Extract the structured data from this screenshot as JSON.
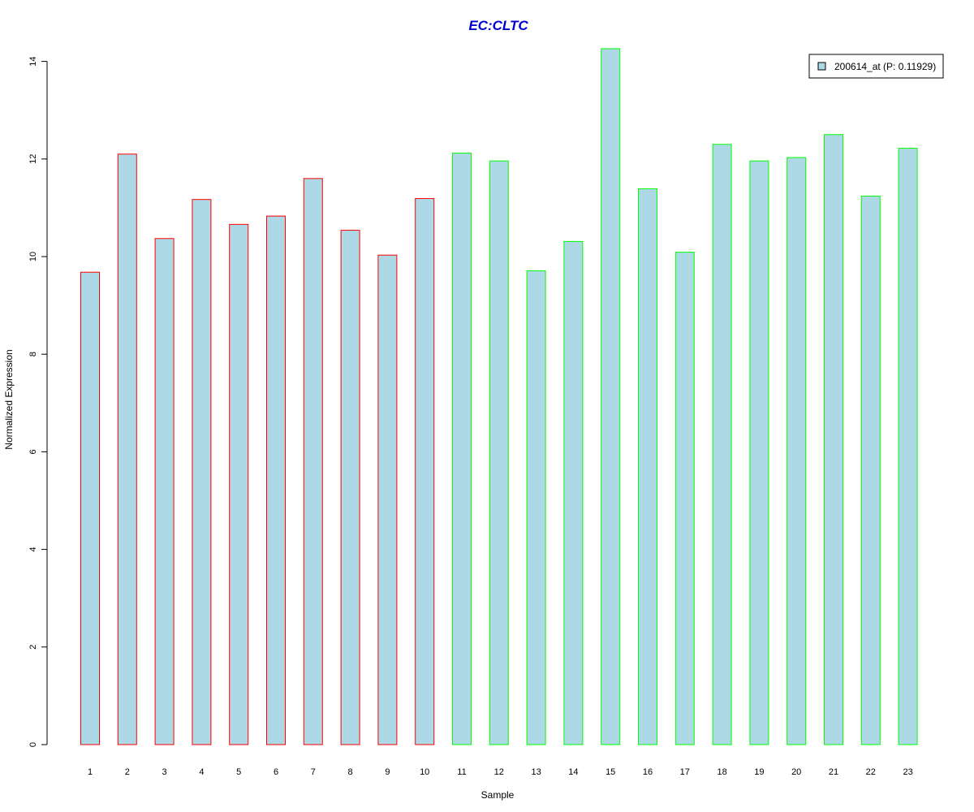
{
  "chart_data": {
    "type": "bar",
    "title": "EC:CLTC",
    "xlabel": "Sample",
    "ylabel": "Normalized Expression",
    "categories": [
      "1",
      "2",
      "3",
      "4",
      "5",
      "6",
      "7",
      "8",
      "9",
      "10",
      "11",
      "12",
      "13",
      "14",
      "15",
      "16",
      "17",
      "18",
      "19",
      "20",
      "21",
      "22",
      "23"
    ],
    "series": [
      {
        "name": "200614_at (P: 0.11929)",
        "values": [
          9.68,
          12.1,
          10.37,
          11.17,
          10.66,
          10.83,
          11.6,
          10.54,
          10.03,
          11.19,
          12.12,
          11.96,
          9.71,
          10.31,
          14.26,
          11.39,
          10.09,
          12.3,
          11.96,
          12.03,
          12.5,
          11.24,
          12.22
        ]
      }
    ],
    "groups": [
      "red",
      "red",
      "red",
      "red",
      "red",
      "red",
      "red",
      "red",
      "red",
      "red",
      "green",
      "green",
      "green",
      "green",
      "green",
      "green",
      "green",
      "green",
      "green",
      "green",
      "green",
      "green",
      "green"
    ],
    "yticks": [
      0,
      2,
      4,
      6,
      8,
      10,
      12,
      14
    ],
    "ylim": [
      0,
      14.3
    ],
    "grid": false,
    "legend_position": "top-right",
    "colors": {
      "bar_fill": "#add8e6",
      "group_red_border": "#ff0000",
      "group_green_border": "#00ff00",
      "title": "#0000cc",
      "axis": "#000000"
    }
  }
}
